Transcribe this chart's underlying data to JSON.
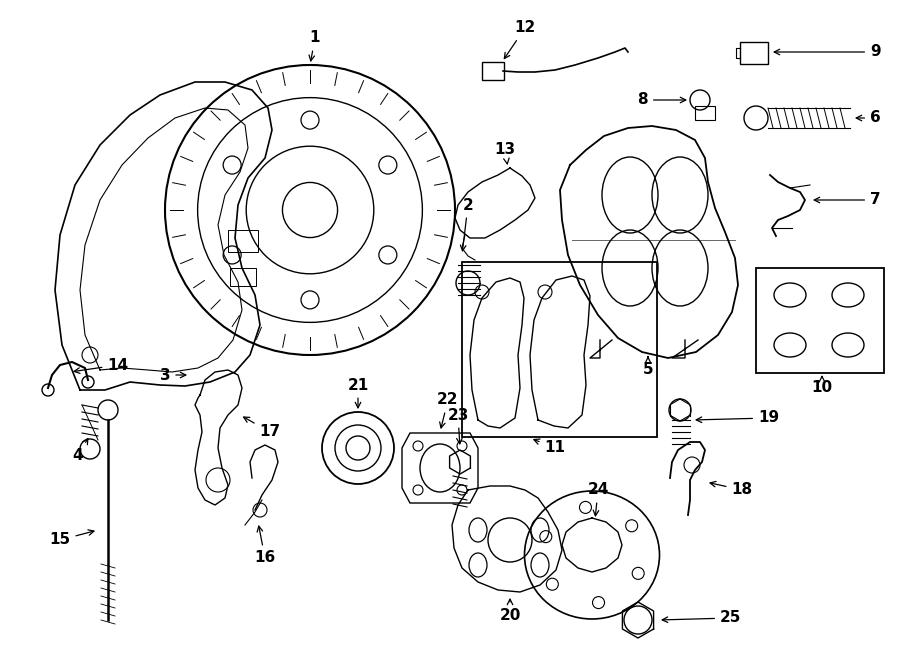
{
  "bg_color": "#ffffff",
  "line_color": "#000000",
  "lw": 1.0,
  "fig_w": 9.0,
  "fig_h": 6.61,
  "xlim": [
    0,
    900
  ],
  "ylim": [
    0,
    661
  ]
}
